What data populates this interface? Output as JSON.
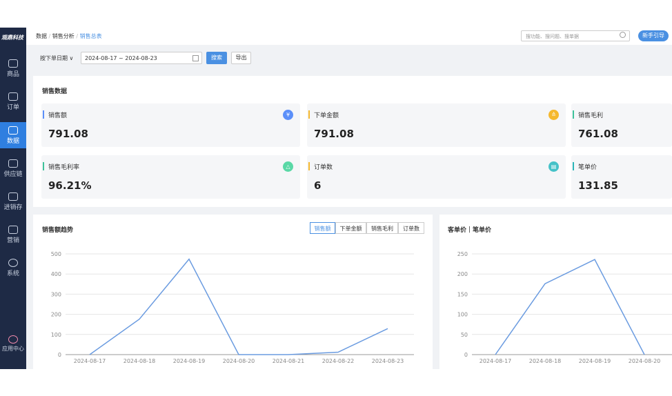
{
  "sidebar": {
    "logo": "观鼎科技",
    "items": [
      "商品",
      "订单",
      "数据",
      "供应链",
      "进销存",
      "营销",
      "系统"
    ],
    "app_center": "应用中心"
  },
  "header": {
    "breadcrumb": [
      "数据",
      "销售分析",
      "销售总表"
    ],
    "search_placeholder": "搜功能、搜问题、搜单据",
    "guide_button": "新手引导"
  },
  "filter": {
    "date_type": "按下单日期",
    "date_range": "2024-08-17 ~ 2024-08-23",
    "search_button": "搜索",
    "export_button": "导出"
  },
  "sales_data": {
    "title": "销售数据",
    "cards": [
      {
        "label": "销售额",
        "value": "791.08",
        "icon": "¥"
      },
      {
        "label": "下单金额",
        "value": "791.08",
        "icon": "≙"
      },
      {
        "label": "销售毛利",
        "value": "761.08"
      },
      {
        "label": "销售毛利率",
        "value": "96.21%",
        "icon": "△"
      },
      {
        "label": "订单数",
        "value": "6",
        "icon": "▤"
      },
      {
        "label": "笔单价",
        "value": "131.85"
      }
    ]
  },
  "sales_trend": {
    "type": "line",
    "title": "销售额趋势",
    "tabs": [
      "销售额",
      "下单金额",
      "销售毛利",
      "订单数"
    ],
    "categories": [
      "2024-08-17",
      "2024-08-18",
      "2024-08-19",
      "2024-08-20",
      "2024-08-21",
      "2024-08-22",
      "2024-08-23"
    ],
    "values": [
      0,
      176,
      474,
      0,
      0,
      12,
      129
    ],
    "ylim": [
      0,
      500
    ],
    "yticks": [
      0,
      100,
      200,
      300,
      400,
      500
    ],
    "color": "#6a9be0"
  },
  "price_trend": {
    "type": "line",
    "title": "客单价｜笔单价",
    "categories": [
      "2024-08-17",
      "2024-08-18",
      "2024-08-19",
      "2024-08-20"
    ],
    "values": [
      0,
      176,
      236,
      0
    ],
    "ylim": [
      0,
      250
    ],
    "yticks": [
      0,
      50,
      100,
      150,
      200,
      250
    ],
    "color": "#6a9be0"
  }
}
